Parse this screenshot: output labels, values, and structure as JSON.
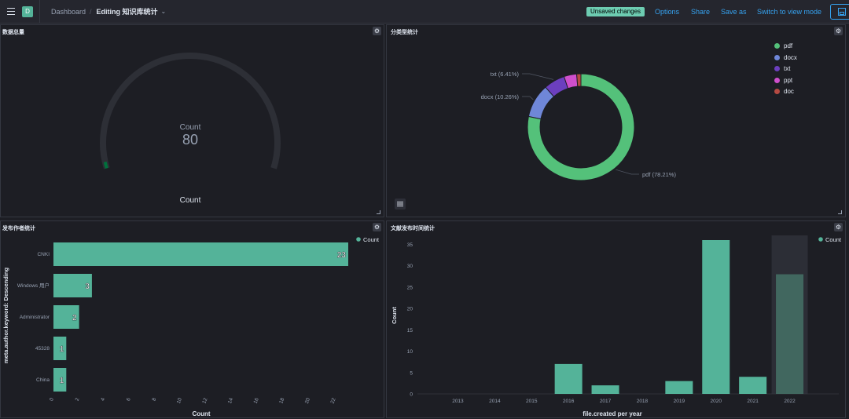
{
  "topbar": {
    "space_letter": "D",
    "breadcrumb_root": "Dashboard",
    "breadcrumb_current": "Editing 知识库统计",
    "unsaved_badge": "Unsaved changes",
    "options": "Options",
    "share": "Share",
    "save_as": "Save as",
    "switch_mode": "Switch to view mode"
  },
  "panels": {
    "gauge": {
      "title": "数据总量",
      "metric_label": "Count",
      "value": "80",
      "footer_label": "Count",
      "fill_fraction": 0.02
    },
    "pie": {
      "title": "分类型统计"
    },
    "authors": {
      "title": "发布作者统计"
    },
    "years": {
      "title": "文献发布时间统计"
    }
  },
  "colors": {
    "accent": "#36a2ef",
    "green": "#54b399",
    "pdf": "#54c17a",
    "docx": "#6f87d8",
    "txt": "#6c3fbf",
    "ppt": "#d36086",
    "doc": "#b54a42",
    "ppt_pink": "#cf4fcc"
  },
  "chart_data": [
    {
      "type": "pie",
      "title": "分类型统计",
      "donut": true,
      "slices": [
        {
          "name": "pdf",
          "value": 78.21,
          "label": "pdf (78.21%)"
        },
        {
          "name": "docx",
          "value": 10.26,
          "label": "docx (10.26%)"
        },
        {
          "name": "txt",
          "value": 6.41,
          "label": "txt (6.41%)"
        },
        {
          "name": "ppt",
          "value": 3.85,
          "label": ""
        },
        {
          "name": "doc",
          "value": 1.28,
          "label": ""
        }
      ],
      "legend": [
        "pdf",
        "docx",
        "txt",
        "ppt",
        "doc"
      ],
      "legend_position": "top-right"
    },
    {
      "type": "bar",
      "orientation": "horizontal",
      "title": "发布作者统计",
      "categories": [
        "CNKI",
        "Windows 用户",
        "Administrator",
        "45328",
        "China"
      ],
      "values": [
        23,
        3,
        2,
        1,
        1
      ],
      "xlabel": "Count",
      "ylabel": "meta.author.keyword: Descending",
      "xticks": [
        "0",
        "2",
        "4",
        "6",
        "8",
        "10",
        "12",
        "14",
        "16",
        "18",
        "20",
        "22"
      ],
      "xlim": [
        0,
        23
      ],
      "legend": [
        "Count"
      ],
      "legend_position": "top-right"
    },
    {
      "type": "bar",
      "title": "文献发布时间统计",
      "categories": [
        "2013",
        "2014",
        "2015",
        "2016",
        "2017",
        "2018",
        "2019",
        "2020",
        "2021",
        "2022"
      ],
      "values": [
        0,
        0,
        0,
        7,
        2,
        0,
        3,
        36,
        4,
        28
      ],
      "xlabel": "file.created per year",
      "ylabel": "Count",
      "yticks": [
        "0",
        "5",
        "10",
        "15",
        "20",
        "25",
        "30",
        "35"
      ],
      "ylim": [
        0,
        36
      ],
      "highlighted_category": "2022",
      "legend": [
        "Count"
      ],
      "legend_position": "top-right"
    }
  ]
}
